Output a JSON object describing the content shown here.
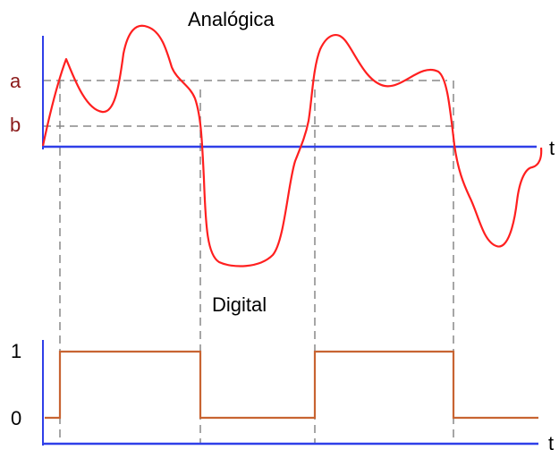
{
  "diagram": {
    "analog_title": "Analógica",
    "digital_title": "Digital",
    "level_a": "a",
    "level_b": "b",
    "time_axis_top": "t",
    "time_axis_bottom": "t",
    "digital_high": "1",
    "digital_low": "0"
  },
  "colors": {
    "axis": "#2f3fe8",
    "analog_wave": "#ff1f1f",
    "digital_wave": "#c86432",
    "level_label": "#8b1a1a",
    "dashed": "#888888",
    "text": "#000000"
  }
}
